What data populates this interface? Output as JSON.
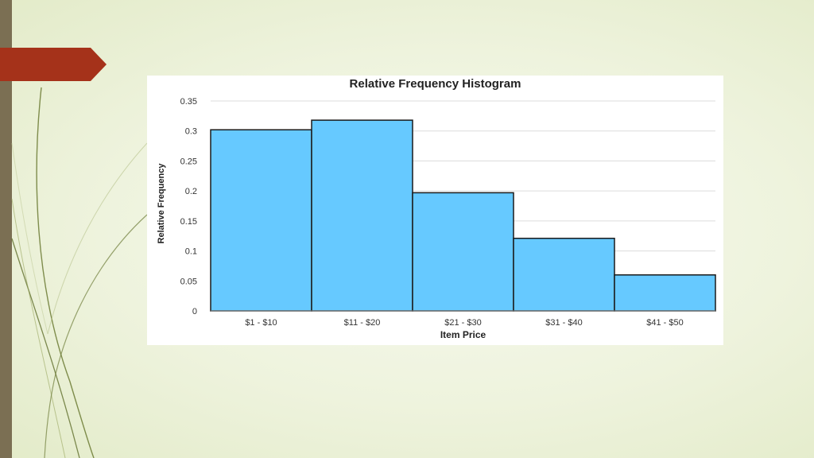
{
  "colors": {
    "left_bar": "#7b6f53",
    "accent_tab": "#a5321a",
    "bar_fill": "#66c9ff",
    "bar_stroke": "#1a1a1a",
    "grid": "#dcdcdc"
  },
  "chart_data": {
    "type": "bar",
    "title": "Relative Frequency Histogram",
    "xlabel": "Item Price",
    "ylabel": "Relative Frequency",
    "categories": [
      "$1 - $10",
      "$11 - $20",
      "$21 - $30",
      "$31 - $40",
      "$41 - $50"
    ],
    "values": [
      0.302,
      0.318,
      0.197,
      0.121,
      0.06
    ],
    "ylim": [
      0,
      0.35
    ],
    "yticks": [
      "0",
      "0.05",
      "0.1",
      "0.15",
      "0.2",
      "0.25",
      "0.3",
      "0.35"
    ],
    "grid": true,
    "legend": "none"
  }
}
